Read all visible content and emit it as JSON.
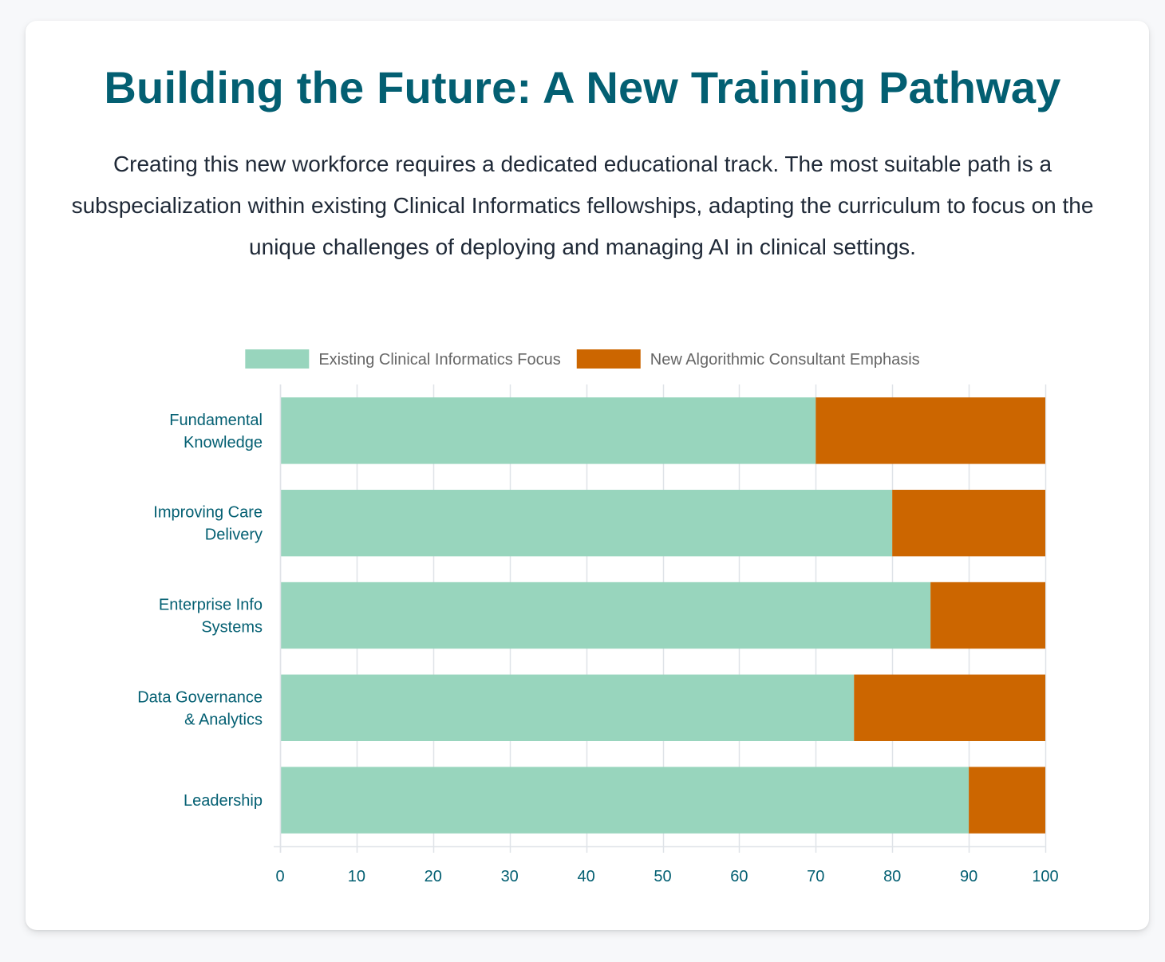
{
  "header": {
    "title": "Building the Future: A New Training Pathway",
    "description": "Creating this new workforce requires a dedicated educational track. The most suitable path is a subspecialization within existing Clinical Informatics fellowships, adapting the curriculum to focus on the unique challenges of deploying and managing AI in clinical settings."
  },
  "colors": {
    "title": "#035f72",
    "axis_text": "#035f72",
    "legend_text": "#666666",
    "grid": "#dfe3e8"
  },
  "chart_data": {
    "type": "bar",
    "orientation": "horizontal",
    "stacked": true,
    "categories": [
      [
        "Fundamental",
        "Knowledge"
      ],
      [
        "Improving Care",
        "Delivery"
      ],
      [
        "Enterprise Info",
        "Systems"
      ],
      [
        "Data Governance",
        "& Analytics"
      ],
      [
        "Leadership"
      ]
    ],
    "series": [
      {
        "name": "Existing Clinical Informatics Focus",
        "color": "#98d5bd",
        "values": [
          70,
          80,
          85,
          75,
          90
        ]
      },
      {
        "name": "New Algorithmic Consultant Emphasis",
        "color": "#cc6600",
        "values": [
          30,
          20,
          15,
          25,
          10
        ]
      }
    ],
    "xlim": [
      0,
      100
    ],
    "xticks": [
      0,
      10,
      20,
      30,
      40,
      50,
      60,
      70,
      80,
      90,
      100
    ],
    "grid": true,
    "legend": "top-center"
  }
}
